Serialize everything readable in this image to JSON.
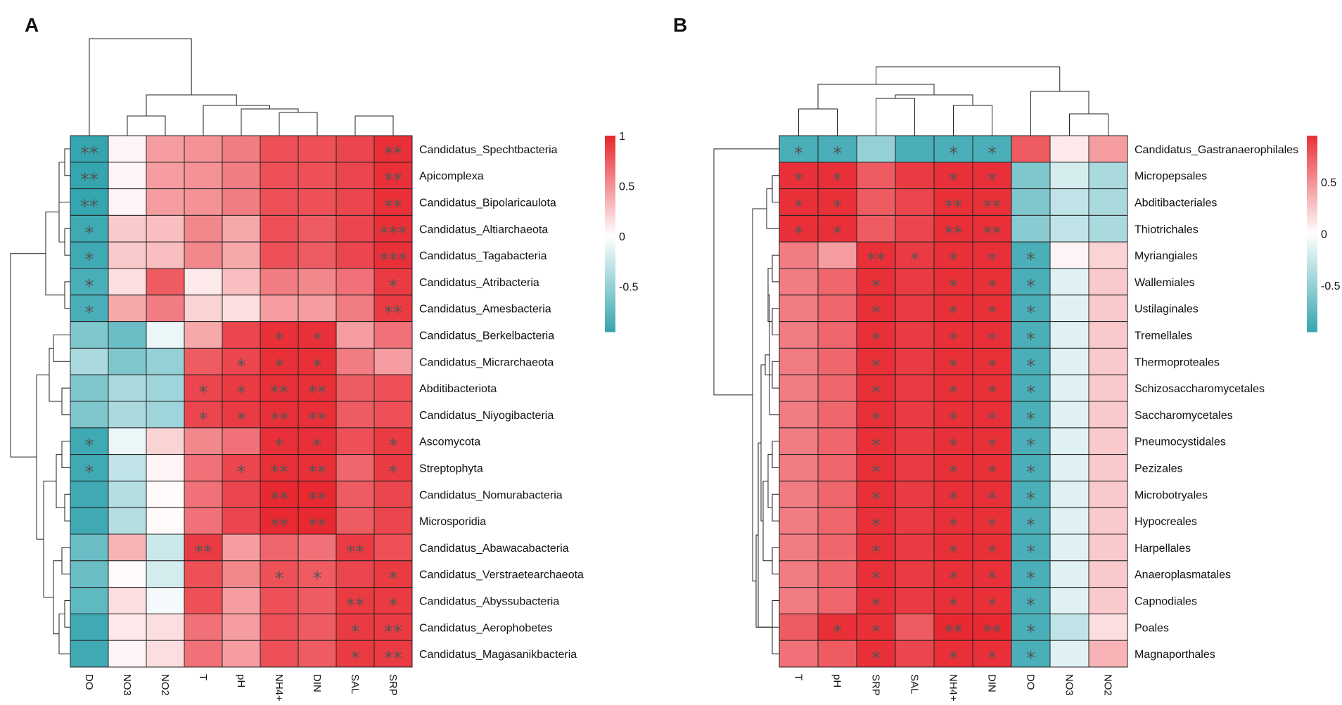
{
  "chart_data": [
    {
      "type": "heatmap",
      "panel_label": "A",
      "columns": [
        "DO",
        "NO3",
        "NO2",
        "T",
        "pH",
        "NH4+",
        "DIN",
        "SAL",
        "SRP"
      ],
      "rows": [
        "Candidatus_Spechtbacteria",
        "Apicomplexa",
        "Candidatus_Bipolaricaulota",
        "Candidatus_Altiarchaeota",
        "Candidatus_Tagabacteria",
        "Candidatus_Atribacteria",
        "Candidatus_Amesbacteria",
        "Candidatus_Berkelbacteria",
        "Candidatus_Micrarchaeota",
        "Abditibacteriota",
        "Candidatus_Niyogibacteria",
        "Ascomycota",
        "Streptophyta",
        "Candidatus_Nomurabacteria",
        "Microsporidia",
        "Candidatus_Abawacabacteria",
        "Candidatus_Verstraetearchaeota",
        "Candidatus_Abyssubacteria",
        "Candidatus_Aerophobetes",
        "Candidatus_Magasanikbacteria"
      ],
      "values": [
        [
          -0.95,
          0.05,
          0.45,
          0.5,
          0.6,
          0.8,
          0.8,
          0.85,
          0.95
        ],
        [
          -0.95,
          0.05,
          0.45,
          0.5,
          0.6,
          0.8,
          0.8,
          0.85,
          0.95
        ],
        [
          -0.95,
          0.05,
          0.45,
          0.5,
          0.6,
          0.8,
          0.8,
          0.85,
          0.95
        ],
        [
          -0.9,
          0.25,
          0.3,
          0.55,
          0.4,
          0.8,
          0.75,
          0.85,
          0.95
        ],
        [
          -0.9,
          0.25,
          0.3,
          0.55,
          0.4,
          0.8,
          0.75,
          0.85,
          0.95
        ],
        [
          -0.85,
          0.15,
          0.75,
          0.1,
          0.3,
          0.6,
          0.55,
          0.65,
          0.9
        ],
        [
          -0.85,
          0.4,
          0.6,
          0.2,
          0.15,
          0.45,
          0.45,
          0.6,
          0.9
        ],
        [
          -0.6,
          -0.7,
          -0.1,
          0.4,
          0.85,
          0.95,
          0.95,
          0.45,
          0.65
        ],
        [
          -0.4,
          -0.6,
          -0.5,
          0.75,
          0.85,
          0.95,
          0.95,
          0.6,
          0.45
        ],
        [
          -0.6,
          -0.4,
          -0.45,
          0.85,
          0.9,
          0.95,
          0.95,
          0.75,
          0.8
        ],
        [
          -0.6,
          -0.4,
          -0.45,
          0.85,
          0.9,
          0.95,
          0.95,
          0.75,
          0.8
        ],
        [
          -0.9,
          -0.1,
          0.2,
          0.55,
          0.65,
          0.95,
          0.95,
          0.8,
          0.9
        ],
        [
          -0.9,
          -0.3,
          0.05,
          0.65,
          0.85,
          0.95,
          0.95,
          0.7,
          0.9
        ],
        [
          -0.9,
          -0.35,
          0.02,
          0.65,
          0.85,
          0.98,
          0.98,
          0.75,
          0.85
        ],
        [
          -0.9,
          -0.35,
          0.02,
          0.65,
          0.85,
          0.98,
          0.98,
          0.75,
          0.85
        ],
        [
          -0.7,
          0.35,
          -0.25,
          0.9,
          0.45,
          0.7,
          0.65,
          0.9,
          0.8
        ],
        [
          -0.7,
          0.02,
          -0.2,
          0.8,
          0.55,
          0.8,
          0.75,
          0.85,
          0.9
        ],
        [
          -0.75,
          0.15,
          -0.05,
          0.8,
          0.45,
          0.8,
          0.75,
          0.9,
          0.9
        ],
        [
          -0.9,
          0.1,
          0.15,
          0.65,
          0.45,
          0.8,
          0.75,
          0.9,
          0.9
        ],
        [
          -0.9,
          0.05,
          0.15,
          0.65,
          0.45,
          0.8,
          0.75,
          0.9,
          0.9
        ]
      ],
      "significance": [
        [
          "**",
          "",
          "",
          "",
          "",
          "",
          "",
          "",
          "**"
        ],
        [
          "**",
          "",
          "",
          "",
          "",
          "",
          "",
          "",
          "**"
        ],
        [
          "**",
          "",
          "",
          "",
          "",
          "",
          "",
          "",
          "**"
        ],
        [
          "*",
          "",
          "",
          "",
          "",
          "",
          "",
          "",
          "***"
        ],
        [
          "*",
          "",
          "",
          "",
          "",
          "",
          "",
          "",
          "***"
        ],
        [
          "*",
          "",
          "",
          "",
          "",
          "",
          "",
          "",
          "*"
        ],
        [
          "*",
          "",
          "",
          "",
          "",
          "",
          "",
          "",
          "**"
        ],
        [
          "",
          "",
          "",
          "",
          "",
          "*",
          "*",
          "",
          ""
        ],
        [
          "",
          "",
          "",
          "",
          "*",
          "*",
          "*",
          "",
          ""
        ],
        [
          "",
          "",
          "",
          "*",
          "*",
          "**",
          "**",
          "",
          ""
        ],
        [
          "",
          "",
          "",
          "*",
          "*",
          "**",
          "**",
          "",
          ""
        ],
        [
          "*",
          "",
          "",
          "",
          "",
          "*",
          "*",
          "",
          "*"
        ],
        [
          "*",
          "",
          "",
          "",
          "*",
          "**",
          "**",
          "",
          "*"
        ],
        [
          "",
          "",
          "",
          "",
          "",
          "**",
          "**",
          "",
          ""
        ],
        [
          "",
          "",
          "",
          "",
          "",
          "**",
          "**",
          "",
          ""
        ],
        [
          "",
          "",
          "",
          "**",
          "",
          "",
          "",
          "**",
          ""
        ],
        [
          "",
          "",
          "",
          "",
          "",
          "*",
          "*",
          "",
          "*"
        ],
        [
          "",
          "",
          "",
          "",
          "",
          "",
          "",
          "**",
          "*"
        ],
        [
          "",
          "",
          "",
          "",
          "",
          "",
          "",
          "*",
          "**"
        ],
        [
          "",
          "",
          "",
          "",
          "",
          "",
          "",
          "*",
          "**"
        ]
      ],
      "colorbar": {
        "ticks": [
          1,
          0.5,
          0,
          -0.5
        ],
        "tick_labels": [
          "1",
          "0.5",
          "0",
          "-0.5"
        ],
        "range": [
          -0.95,
          1
        ]
      }
    },
    {
      "type": "heatmap",
      "panel_label": "B",
      "columns": [
        "T",
        "pH",
        "SRP",
        "SAL",
        "NH4+",
        "DIN",
        "DO",
        "NO3",
        "NO2"
      ],
      "rows": [
        "Candidatus_Gastranaerophilales",
        "Micropepsales",
        "Abditibacteriales",
        "Thiotrichales",
        "Myriangiales",
        "Wallemiales",
        "Ustilaginales",
        "Tremellales",
        "Thermoproteales",
        "Schizosaccharomycetales",
        "Saccharomycetales",
        "Pneumocystidales",
        "Pezizales",
        "Microbotryales",
        "Hypocreales",
        "Harpellales",
        "Anaeroplasmatales",
        "Capnodiales",
        "Poales",
        "Magnaporthales"
      ],
      "values": [
        [
          -0.85,
          -0.85,
          -0.5,
          -0.85,
          -0.85,
          -0.85,
          0.75,
          0.1,
          0.45
        ],
        [
          0.95,
          0.95,
          0.75,
          0.9,
          0.95,
          0.95,
          -0.6,
          -0.2,
          -0.4
        ],
        [
          0.95,
          0.95,
          0.75,
          0.85,
          0.95,
          0.95,
          -0.6,
          -0.3,
          -0.4
        ],
        [
          0.95,
          0.95,
          0.75,
          0.85,
          0.95,
          0.95,
          -0.55,
          -0.3,
          -0.4
        ],
        [
          0.6,
          0.45,
          0.95,
          0.9,
          0.95,
          0.95,
          -0.85,
          0.05,
          0.2
        ],
        [
          0.6,
          0.7,
          0.95,
          0.9,
          0.95,
          0.95,
          -0.85,
          -0.15,
          0.25
        ],
        [
          0.6,
          0.7,
          0.95,
          0.9,
          0.95,
          0.95,
          -0.85,
          -0.15,
          0.25
        ],
        [
          0.6,
          0.7,
          0.95,
          0.9,
          0.95,
          0.95,
          -0.85,
          -0.15,
          0.25
        ],
        [
          0.6,
          0.7,
          0.95,
          0.9,
          0.95,
          0.95,
          -0.85,
          -0.15,
          0.25
        ],
        [
          0.6,
          0.7,
          0.95,
          0.9,
          0.95,
          0.95,
          -0.85,
          -0.15,
          0.25
        ],
        [
          0.6,
          0.7,
          0.95,
          0.9,
          0.95,
          0.95,
          -0.85,
          -0.15,
          0.25
        ],
        [
          0.6,
          0.7,
          0.95,
          0.9,
          0.95,
          0.95,
          -0.85,
          -0.15,
          0.25
        ],
        [
          0.6,
          0.7,
          0.95,
          0.9,
          0.95,
          0.95,
          -0.85,
          -0.15,
          0.25
        ],
        [
          0.6,
          0.7,
          0.95,
          0.9,
          0.95,
          0.95,
          -0.85,
          -0.15,
          0.25
        ],
        [
          0.6,
          0.7,
          0.95,
          0.9,
          0.95,
          0.95,
          -0.85,
          -0.15,
          0.25
        ],
        [
          0.6,
          0.7,
          0.95,
          0.9,
          0.95,
          0.95,
          -0.85,
          -0.15,
          0.25
        ],
        [
          0.6,
          0.7,
          0.95,
          0.9,
          0.95,
          0.95,
          -0.85,
          -0.15,
          0.25
        ],
        [
          0.6,
          0.7,
          0.95,
          0.9,
          0.95,
          0.95,
          -0.85,
          -0.15,
          0.25
        ],
        [
          0.75,
          0.95,
          0.95,
          0.75,
          0.98,
          0.98,
          -0.85,
          -0.3,
          0.15
        ],
        [
          0.65,
          0.75,
          0.95,
          0.85,
          0.95,
          0.95,
          -0.85,
          -0.15,
          0.35
        ]
      ],
      "significance": [
        [
          "*",
          "*",
          "",
          "",
          "*",
          "*",
          "",
          "",
          ""
        ],
        [
          "*",
          "*",
          "",
          "",
          "*",
          "*",
          "",
          "",
          ""
        ],
        [
          "*",
          "*",
          "",
          "",
          "**",
          "**",
          "",
          "",
          ""
        ],
        [
          "*",
          "*",
          "",
          "",
          "**",
          "**",
          "",
          "",
          ""
        ],
        [
          "",
          "",
          "**",
          "*",
          "*",
          "*",
          "*",
          "",
          ""
        ],
        [
          "",
          "",
          "*",
          "",
          "*",
          "*",
          "*",
          "",
          ""
        ],
        [
          "",
          "",
          "*",
          "",
          "*",
          "*",
          "*",
          "",
          ""
        ],
        [
          "",
          "",
          "*",
          "",
          "*",
          "*",
          "*",
          "",
          ""
        ],
        [
          "",
          "",
          "*",
          "",
          "*",
          "*",
          "*",
          "",
          ""
        ],
        [
          "",
          "",
          "*",
          "",
          "*",
          "*",
          "*",
          "",
          ""
        ],
        [
          "",
          "",
          "*",
          "",
          "*",
          "*",
          "*",
          "",
          ""
        ],
        [
          "",
          "",
          "*",
          "",
          "*",
          "*",
          "*",
          "",
          ""
        ],
        [
          "",
          "",
          "*",
          "",
          "*",
          "*",
          "*",
          "",
          ""
        ],
        [
          "",
          "",
          "*",
          "",
          "*",
          "*",
          "*",
          "",
          ""
        ],
        [
          "",
          "",
          "*",
          "",
          "*",
          "*",
          "*",
          "",
          ""
        ],
        [
          "",
          "",
          "*",
          "",
          "*",
          "*",
          "*",
          "",
          ""
        ],
        [
          "",
          "",
          "*",
          "",
          "*",
          "*",
          "*",
          "",
          ""
        ],
        [
          "",
          "",
          "*",
          "",
          "*",
          "*",
          "*",
          "",
          ""
        ],
        [
          "",
          "*",
          "*",
          "",
          "**",
          "**",
          "*",
          "",
          ""
        ],
        [
          "",
          "",
          "*",
          "",
          "*",
          "*",
          "*",
          "",
          ""
        ]
      ],
      "colorbar": {
        "ticks": [
          0.5,
          0,
          -0.5
        ],
        "tick_labels": [
          "0.5",
          "0",
          "-0.5"
        ],
        "range": [
          -0.95,
          0.95
        ]
      }
    }
  ],
  "colors": {
    "low": "#2aa1ac",
    "mid": "#ffffff",
    "high": "#e8252d",
    "star": "#555555",
    "line": "#222222"
  }
}
